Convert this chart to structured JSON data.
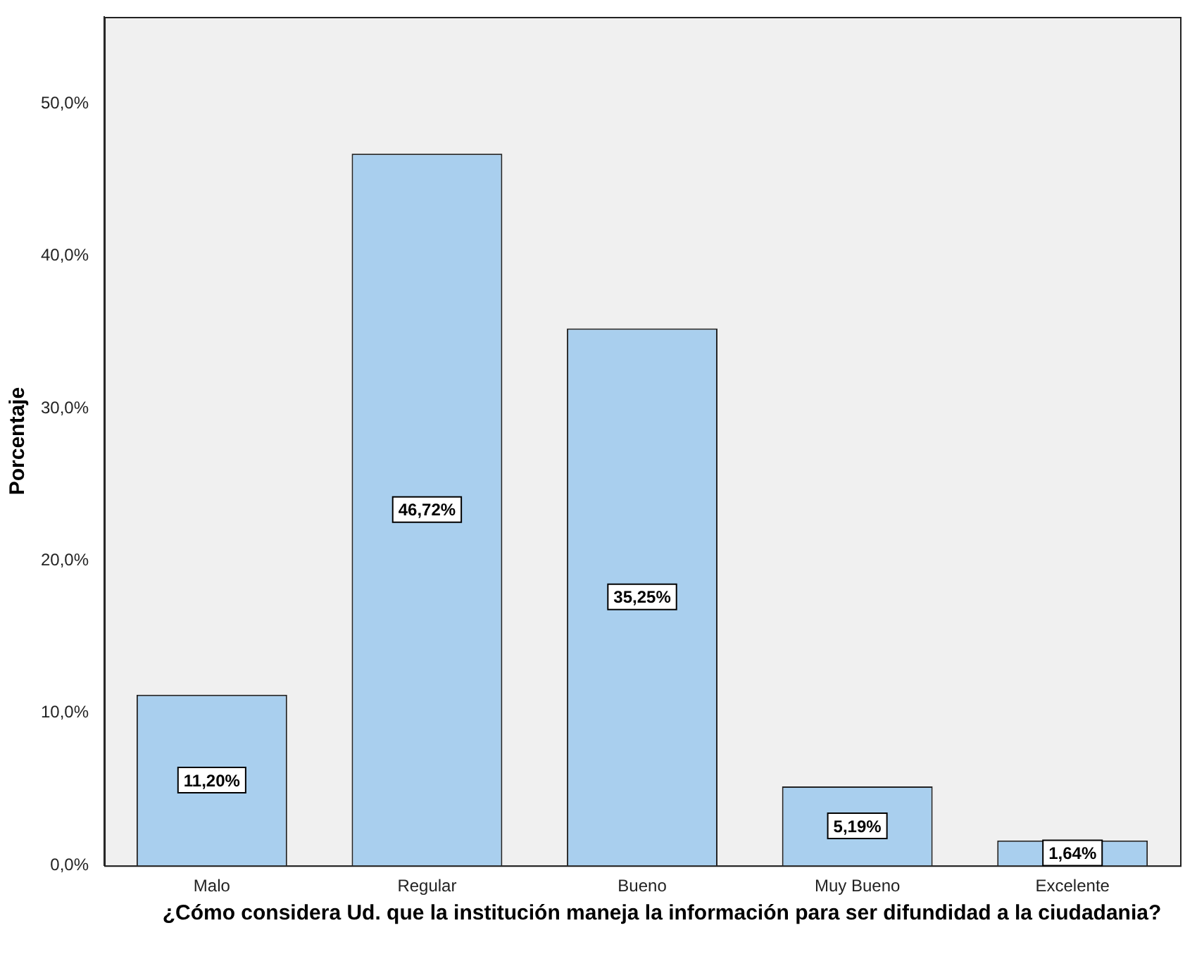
{
  "chart_data": {
    "type": "bar",
    "xlabel": "¿Cómo considera Ud. que la institución maneja la información para ser difundidad a la ciudadania?",
    "ylabel": "Porcentaje",
    "categories": [
      "Malo",
      "Regular",
      "Bueno",
      "Muy Bueno",
      "Excelente"
    ],
    "values": [
      11.2,
      46.72,
      35.25,
      5.19,
      1.64
    ],
    "value_labels": [
      "11,20%",
      "46,72%",
      "35,25%",
      "5,19%",
      "1,64%"
    ],
    "color": "#a9cfee",
    "ylim": [
      0,
      55.7
    ],
    "yticks": [
      {
        "value": 0,
        "label": "0,0%"
      },
      {
        "value": 10,
        "label": "10,0%"
      },
      {
        "value": 20,
        "label": "20,0%"
      },
      {
        "value": 30,
        "label": "30,0%"
      },
      {
        "value": 40,
        "label": "40,0%"
      },
      {
        "value": 50,
        "label": "50,0%"
      }
    ],
    "grid": false,
    "legend": false
  }
}
